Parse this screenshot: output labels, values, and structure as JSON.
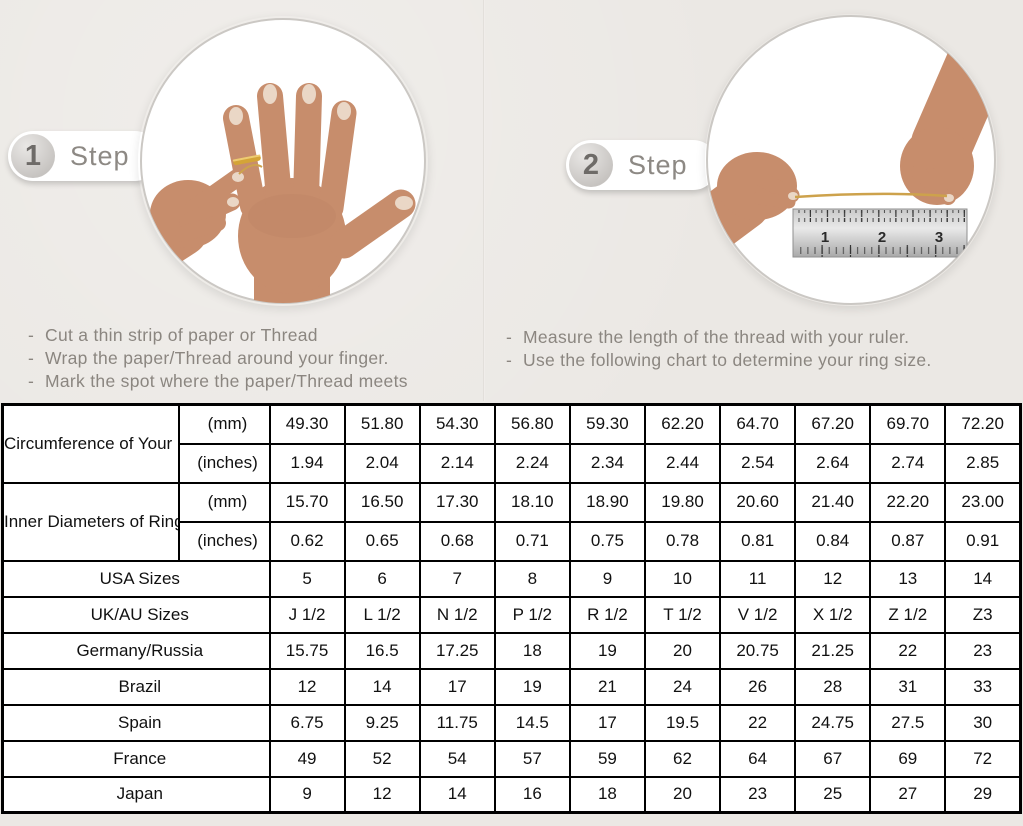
{
  "steps": [
    {
      "number": "1",
      "label": "Step",
      "instructions": [
        "Cut a thin strip of paper or Thread",
        "Wrap the paper/Thread around your finger.",
        "Mark the spot where the paper/Thread meets"
      ]
    },
    {
      "number": "2",
      "label": "Step",
      "instructions": [
        "Measure the length of the thread with your ruler.",
        "Use the following chart to determine your ring size."
      ]
    }
  ],
  "ruler": {
    "numbers": [
      "1",
      "2",
      "3"
    ]
  },
  "size_chart": {
    "groups": [
      {
        "label": "Circumference of Your Finger",
        "sub": [
          {
            "unit": "(mm)",
            "shaded": true,
            "values": [
              "49.30",
              "51.80",
              "54.30",
              "56.80",
              "59.30",
              "62.20",
              "64.70",
              "67.20",
              "69.70",
              "72.20"
            ]
          },
          {
            "unit": "(inches)",
            "shaded": false,
            "values": [
              "1.94",
              "2.04",
              "2.14",
              "2.24",
              "2.34",
              "2.44",
              "2.54",
              "2.64",
              "2.74",
              "2.85"
            ]
          }
        ]
      },
      {
        "label": "Inner Diameters of Rings",
        "sub": [
          {
            "unit": "(mm)",
            "shaded": false,
            "values": [
              "15.70",
              "16.50",
              "17.30",
              "18.10",
              "18.90",
              "19.80",
              "20.60",
              "21.40",
              "22.20",
              "23.00"
            ]
          },
          {
            "unit": "(inches)",
            "shaded": false,
            "values": [
              "0.62",
              "0.65",
              "0.68",
              "0.71",
              "0.75",
              "0.78",
              "0.81",
              "0.84",
              "0.87",
              "0.91"
            ]
          }
        ]
      }
    ],
    "rows": [
      {
        "label": "USA Sizes",
        "shaded": true,
        "values": [
          "5",
          "6",
          "7",
          "8",
          "9",
          "10",
          "11",
          "12",
          "13",
          "14"
        ]
      },
      {
        "label": "UK/AU Sizes",
        "shaded": false,
        "values": [
          "J 1/2",
          "L 1/2",
          "N 1/2",
          "P 1/2",
          "R 1/2",
          "T 1/2",
          "V 1/2",
          "X 1/2",
          "Z 1/2",
          "Z3"
        ]
      },
      {
        "label": "Germany/Russia",
        "shaded": false,
        "values": [
          "15.75",
          "16.5",
          "17.25",
          "18",
          "19",
          "20",
          "20.75",
          "21.25",
          "22",
          "23"
        ]
      },
      {
        "label": "Brazil",
        "shaded": false,
        "values": [
          "12",
          "14",
          "17",
          "19",
          "21",
          "24",
          "26",
          "28",
          "31",
          "33"
        ]
      },
      {
        "label": "Spain",
        "shaded": false,
        "values": [
          "6.75",
          "9.25",
          "11.75",
          "14.5",
          "17",
          "19.5",
          "22",
          "24.75",
          "27.5",
          "30"
        ]
      },
      {
        "label": "France",
        "shaded": false,
        "values": [
          "49",
          "52",
          "54",
          "57",
          "59",
          "62",
          "64",
          "67",
          "69",
          "72"
        ]
      },
      {
        "label": "Japan",
        "shaded": false,
        "values": [
          "9",
          "12",
          "14",
          "16",
          "18",
          "20",
          "23",
          "25",
          "27",
          "29"
        ]
      }
    ]
  },
  "colors": {
    "background": "#ebe8e4",
    "table_shade": "#d9d9d9",
    "table_border": "#000000",
    "instruction_text": "#8b8680",
    "skin": "#c78d6c",
    "gold_thread": "#cda24c"
  }
}
